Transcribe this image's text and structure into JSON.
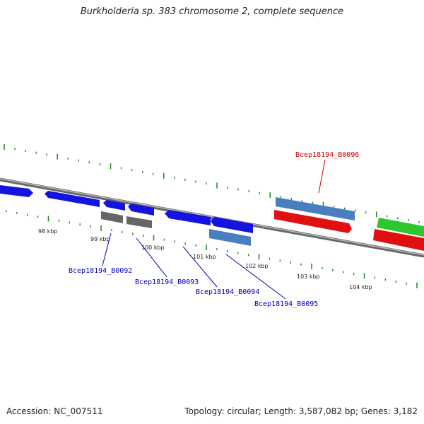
{
  "title": "Burkholderia sp. 383 chromosome 2, complete sequence",
  "footer": {
    "accession": "Accession: NC_007511",
    "summary": "Topology: circular; Length: 3,587,082 bp; Genes: 3,182"
  },
  "colors": {
    "tick": "#2a8a2a",
    "backbone": "#8a8a8a",
    "forward_gene": "#1010e0",
    "pseudo_gene": "#6a6a6a",
    "rna_gene": "#5a8ec8",
    "highlight_gene": "#e01010",
    "other_gene": "#33cc33",
    "label_blue": "#0000c0",
    "label_red": "#cc0000"
  },
  "scale_labels": [
    "98 kbp",
    "99 kbp",
    "100 kbp",
    "101 kbp",
    "102 kbp",
    "103 kbp",
    "104 kbp"
  ],
  "gene_labels": [
    {
      "text": "Bcep18194_B0092",
      "color": "blue"
    },
    {
      "text": "Bcep18194_B0093",
      "color": "blue"
    },
    {
      "text": "Bcep18194_B0094",
      "color": "blue"
    },
    {
      "text": "Bcep18194_B0095",
      "color": "blue"
    },
    {
      "text": "Bcep18194_B0096",
      "color": "red"
    }
  ]
}
